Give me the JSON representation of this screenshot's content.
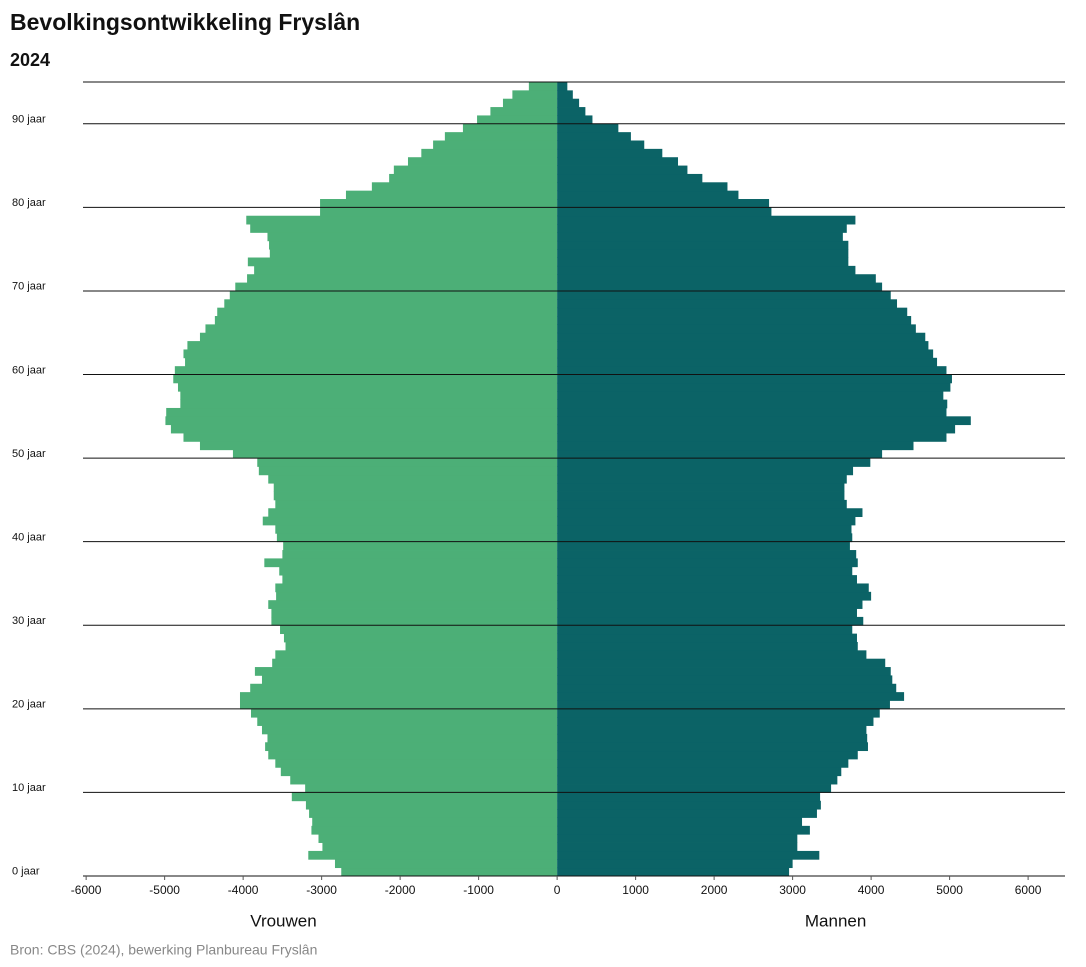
{
  "chart_data": {
    "type": "pyramid",
    "title": "Bevolkingsontwikkeling Fryslân",
    "subtitle": "2024",
    "source": "Bron: CBS (2024), bewerking Planbureau Fryslân",
    "categories": [
      "0 jaar",
      null,
      null,
      null,
      null,
      null,
      null,
      null,
      null,
      null,
      "10 jaar",
      null,
      null,
      null,
      null,
      null,
      null,
      null,
      null,
      null,
      "20 jaar",
      null,
      null,
      null,
      null,
      null,
      null,
      null,
      null,
      null,
      "30 jaar",
      null,
      null,
      null,
      null,
      null,
      null,
      null,
      null,
      null,
      "40 jaar",
      null,
      null,
      null,
      null,
      null,
      null,
      null,
      null,
      null,
      "50 jaar",
      null,
      null,
      null,
      null,
      null,
      null,
      null,
      null,
      null,
      "60 jaar",
      null,
      null,
      null,
      null,
      null,
      null,
      null,
      null,
      null,
      "70 jaar",
      null,
      null,
      null,
      null,
      null,
      null,
      null,
      null,
      null,
      "80 jaar",
      null,
      null,
      null,
      null,
      null,
      null,
      null,
      null,
      null,
      "90 jaar",
      null,
      null,
      null,
      null
    ],
    "series": [
      {
        "name": "Vrouwen",
        "color": "#4caf77",
        "values": [
          -2750,
          -2830,
          -3170,
          -2990,
          -3040,
          -3130,
          -3120,
          -3160,
          -3200,
          -3380,
          -3210,
          -3400,
          -3520,
          -3590,
          -3680,
          -3720,
          -3690,
          -3760,
          -3820,
          -3900,
          -4040,
          -4040,
          -3910,
          -3760,
          -3850,
          -3630,
          -3590,
          -3460,
          -3480,
          -3530,
          -3640,
          -3640,
          -3680,
          -3580,
          -3590,
          -3500,
          -3540,
          -3730,
          -3500,
          -3490,
          -3570,
          -3590,
          -3750,
          -3680,
          -3590,
          -3610,
          -3610,
          -3680,
          -3800,
          -3820,
          -4130,
          -4550,
          -4760,
          -4920,
          -4990,
          -4980,
          -4800,
          -4800,
          -4830,
          -4890,
          -4870,
          -4740,
          -4760,
          -4710,
          -4550,
          -4480,
          -4360,
          -4330,
          -4240,
          -4170,
          -4100,
          -3950,
          -3860,
          -3940,
          -3660,
          -3670,
          -3690,
          -3910,
          -3960,
          -3020,
          -3020,
          -2690,
          -2360,
          -2140,
          -2080,
          -1900,
          -1730,
          -1580,
          -1430,
          -1200,
          -1020,
          -850,
          -690,
          -570,
          -360
        ]
      },
      {
        "name": "Mannen",
        "color": "#0b6366",
        "values": [
          2955,
          3000,
          3340,
          3060,
          3060,
          3220,
          3120,
          3310,
          3360,
          3350,
          3490,
          3570,
          3620,
          3710,
          3830,
          3960,
          3950,
          3940,
          4030,
          4110,
          4240,
          4420,
          4320,
          4270,
          4250,
          4180,
          3940,
          3830,
          3820,
          3760,
          3900,
          3820,
          3890,
          4000,
          3970,
          3820,
          3760,
          3830,
          3810,
          3730,
          3760,
          3750,
          3800,
          3890,
          3690,
          3660,
          3660,
          3690,
          3770,
          3990,
          4140,
          4540,
          4960,
          5070,
          5270,
          4960,
          4970,
          4920,
          5010,
          5030,
          4960,
          4840,
          4790,
          4730,
          4690,
          4570,
          4510,
          4460,
          4330,
          4250,
          4140,
          4060,
          3800,
          3710,
          3710,
          3710,
          3640,
          3690,
          3800,
          2730,
          2700,
          2310,
          2170,
          1850,
          1660,
          1540,
          1340,
          1110,
          940,
          780,
          450,
          360,
          280,
          200,
          130
        ]
      }
    ],
    "xlim": [
      -6040,
      6470
    ],
    "xticks": [
      -6000,
      -5000,
      -4000,
      -3000,
      -2000,
      -1000,
      0,
      1000,
      2000,
      3000,
      4000,
      5000,
      6000
    ]
  }
}
